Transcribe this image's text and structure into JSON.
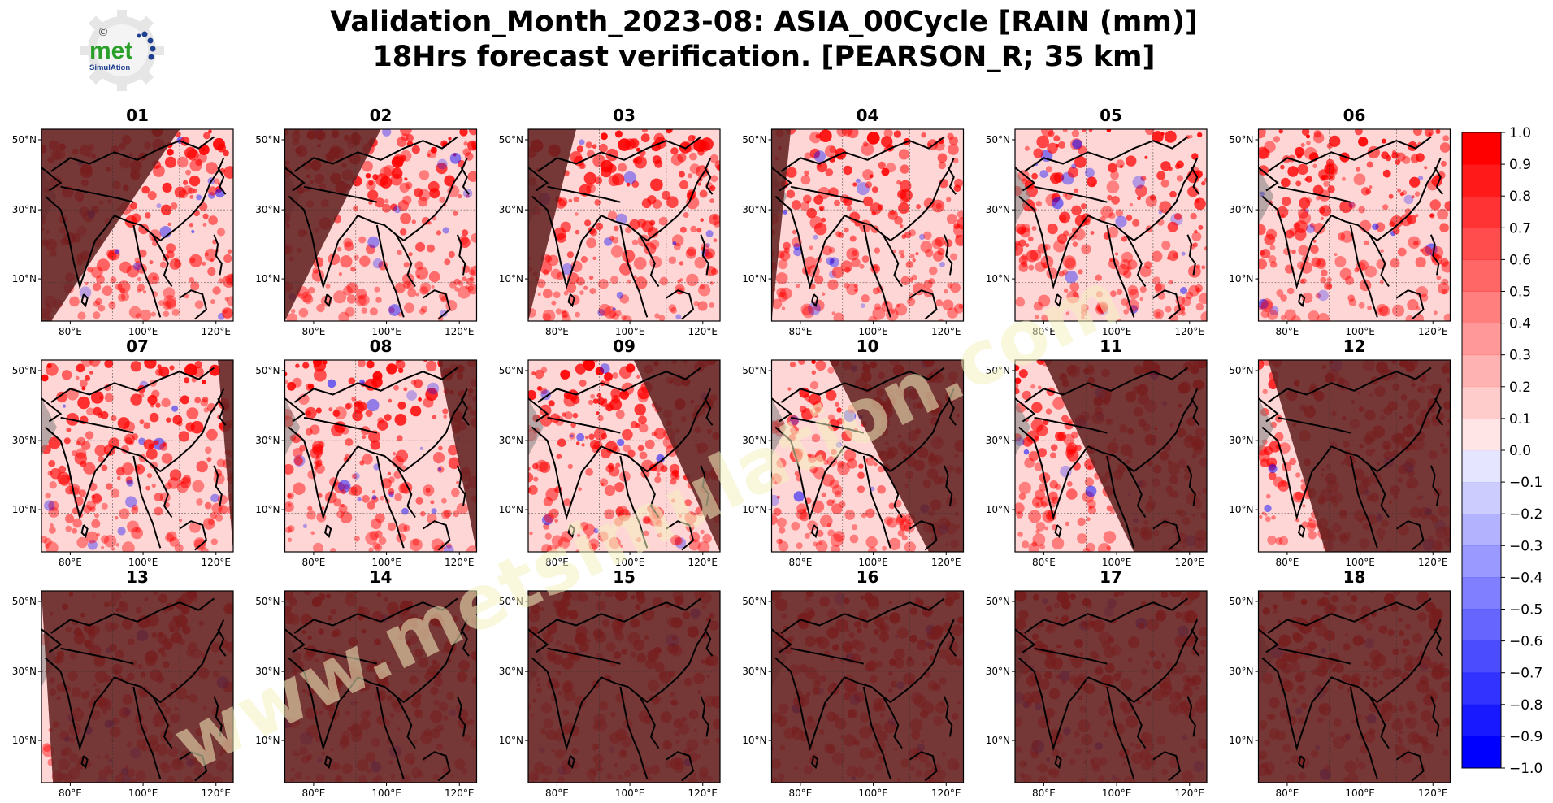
{
  "title": {
    "line1": "Validation_Month_2023-08: ASIA_00Cycle [RAIN (mm)]",
    "line2": "18Hrs forecast verification.  [PEARSON_R; 35 km]"
  },
  "logo": {
    "text_main": "met",
    "text_sub": "SimulAtion",
    "symbol": "©"
  },
  "watermark": {
    "text": "www.metsimulation.com",
    "color": "#f4f0c0"
  },
  "colors": {
    "positive": "#ff0000",
    "negative": "#0000ff",
    "night_shade": "#800000",
    "land_gray": "#808080",
    "border": "#000000"
  },
  "chart_data": {
    "type": "heatmap",
    "subtype": "small-multiple map grid",
    "panel_titles": [
      "01",
      "02",
      "03",
      "04",
      "05",
      "06",
      "07",
      "08",
      "09",
      "10",
      "11",
      "12",
      "13",
      "14",
      "15",
      "16",
      "17",
      "18"
    ],
    "grid": {
      "rows": 3,
      "cols": 6
    },
    "x_ticks": [
      "80°E",
      "100°E",
      "120°E"
    ],
    "y_ticks": [
      "50°N",
      "30°N",
      "10°N"
    ],
    "lon_range": [
      72,
      124
    ],
    "lat_range": [
      0,
      54
    ],
    "value_range": [
      -1.0,
      1.0
    ],
    "night_terminator": [
      {
        "panel": "01",
        "x_top": 0.72,
        "x_bottom": 0.05
      },
      {
        "panel": "02",
        "x_top": 0.5,
        "x_bottom": 0.0
      },
      {
        "panel": "03",
        "x_top": 0.25,
        "x_bottom": 0.0
      },
      {
        "panel": "04",
        "x_top": 0.1,
        "x_bottom": 0.0
      },
      {
        "panel": "05",
        "x_top": 0.0,
        "x_bottom": 0.0
      },
      {
        "panel": "06",
        "x_top": 0.0,
        "x_bottom": 0.0
      },
      {
        "panel": "07",
        "x_top": 0.92,
        "x_bottom": 1.0
      },
      {
        "panel": "08",
        "x_top": 0.8,
        "x_bottom": 1.0
      },
      {
        "panel": "09",
        "x_top": 0.55,
        "x_bottom": 1.0
      },
      {
        "panel": "10",
        "x_top": 0.3,
        "x_bottom": 0.82
      },
      {
        "panel": "11",
        "x_top": 0.15,
        "x_bottom": 0.62
      },
      {
        "panel": "12",
        "x_top": 0.05,
        "x_bottom": 0.35
      },
      {
        "panel": "13",
        "x_top": 0.0,
        "x_bottom": 0.06
      },
      {
        "panel": "14",
        "x_top": 0.0,
        "x_bottom": 0.0
      },
      {
        "panel": "15",
        "x_top": 0.0,
        "x_bottom": 0.0
      },
      {
        "panel": "16",
        "x_top": 0.0,
        "x_bottom": 0.0
      },
      {
        "panel": "17",
        "x_top": 0.0,
        "x_bottom": 0.0
      },
      {
        "panel": "18",
        "x_top": 0.0,
        "x_bottom": 0.0
      }
    ],
    "night_side": [
      "left",
      "left",
      "left",
      "left",
      "left",
      "left",
      "right",
      "right",
      "right",
      "right",
      "right",
      "right",
      "right",
      "right",
      "right",
      "right",
      "right",
      "right"
    ],
    "colorbar": {
      "ticks": [
        "1.0",
        "0.9",
        "0.8",
        "0.7",
        "0.6",
        "0.5",
        "0.4",
        "0.3",
        "0.2",
        "0.1",
        "0.0",
        "−0.1",
        "−0.2",
        "−0.3",
        "−0.4",
        "−0.5",
        "−0.6",
        "−0.7",
        "−0.8",
        "−0.9",
        "−1.0"
      ],
      "levels": 20
    }
  }
}
